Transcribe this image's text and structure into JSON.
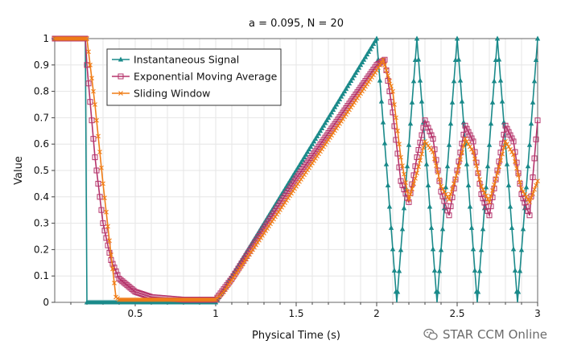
{
  "chart_data": {
    "type": "line",
    "title": "a = 0.095, N = 20",
    "xlabel": "Physical Time (s)",
    "ylabel": "Value",
    "xlim": [
      0,
      3
    ],
    "ylim": [
      0,
      1
    ],
    "x_ticks": [
      {
        "value": 0.5,
        "label": "0.5"
      },
      {
        "value": 1,
        "label": "1"
      },
      {
        "value": 1.5,
        "label": "1.5"
      },
      {
        "value": 2,
        "label": "2"
      },
      {
        "value": 2.5,
        "label": "2.5"
      },
      {
        "value": 3,
        "label": "3"
      }
    ],
    "y_ticks": [
      {
        "value": 0,
        "label": "0"
      },
      {
        "value": 0.1,
        "label": "0.1"
      },
      {
        "value": 0.2,
        "label": "0.2"
      },
      {
        "value": 0.3,
        "label": "0.3"
      },
      {
        "value": 0.4,
        "label": "0.4"
      },
      {
        "value": 0.5,
        "label": "0.5"
      },
      {
        "value": 0.6,
        "label": "0.6"
      },
      {
        "value": 0.7,
        "label": "0.7"
      },
      {
        "value": 0.8,
        "label": "0.8"
      },
      {
        "value": 0.9,
        "label": "0.9"
      },
      {
        "value": 1,
        "label": "1"
      }
    ],
    "grid": true,
    "legend_position": "top-left",
    "series": [
      {
        "name": "Instantaneous Signal",
        "color": "#1a8a8a",
        "marker": "triangle",
        "x": [
          0,
          0.19,
          0.2,
          1.0,
          2.0,
          2.063,
          2.125,
          2.188,
          2.25,
          2.313,
          2.375,
          2.438,
          2.5,
          2.563,
          2.625,
          2.688,
          2.75,
          2.813,
          2.875,
          2.938,
          3.0
        ],
        "values": [
          1,
          1,
          0,
          0,
          1,
          0.5,
          0,
          0.5,
          1,
          0.5,
          0,
          0.5,
          1,
          0.5,
          0,
          0.5,
          1,
          0.5,
          0,
          0.5,
          1
        ]
      },
      {
        "name": "Exponential Moving Average",
        "color": "#b5336b",
        "marker": "square",
        "x": [
          0,
          0.19,
          0.2,
          0.25,
          0.3,
          0.35,
          0.4,
          0.5,
          0.6,
          0.8,
          1.0,
          1.1,
          1.5,
          2.0,
          2.05,
          2.1,
          2.15,
          2.2,
          2.25,
          2.3,
          2.35,
          2.4,
          2.45,
          2.5,
          2.55,
          2.6,
          2.65,
          2.7,
          2.75,
          2.8,
          2.85,
          2.9,
          2.95,
          3.0
        ],
        "values": [
          1,
          1,
          0.9,
          0.55,
          0.3,
          0.16,
          0.09,
          0.04,
          0.02,
          0.01,
          0.01,
          0.09,
          0.47,
          0.9,
          0.92,
          0.72,
          0.46,
          0.38,
          0.55,
          0.69,
          0.62,
          0.42,
          0.33,
          0.5,
          0.67,
          0.61,
          0.41,
          0.33,
          0.5,
          0.67,
          0.61,
          0.41,
          0.33,
          0.69
        ]
      },
      {
        "name": "Sliding Window",
        "color": "#f07d17",
        "marker": "x",
        "x": [
          0,
          0.19,
          0.2,
          0.25,
          0.3,
          0.35,
          0.38,
          0.4,
          1.0,
          1.05,
          1.5,
          2.0,
          2.04,
          2.1,
          2.15,
          2.2,
          2.25,
          2.3,
          2.35,
          2.4,
          2.45,
          2.5,
          2.55,
          2.6,
          2.65,
          2.7,
          2.75,
          2.8,
          2.85,
          2.9,
          2.95,
          3.0
        ],
        "values": [
          1,
          1,
          1,
          0.75,
          0.45,
          0.18,
          0.02,
          0.01,
          0.01,
          0.04,
          0.44,
          0.88,
          0.92,
          0.8,
          0.55,
          0.39,
          0.49,
          0.61,
          0.57,
          0.44,
          0.39,
          0.49,
          0.62,
          0.57,
          0.44,
          0.38,
          0.49,
          0.61,
          0.56,
          0.43,
          0.38,
          0.46
        ]
      }
    ]
  },
  "watermark": {
    "text": "STAR CCM Online",
    "icon": "wechat-icon"
  }
}
